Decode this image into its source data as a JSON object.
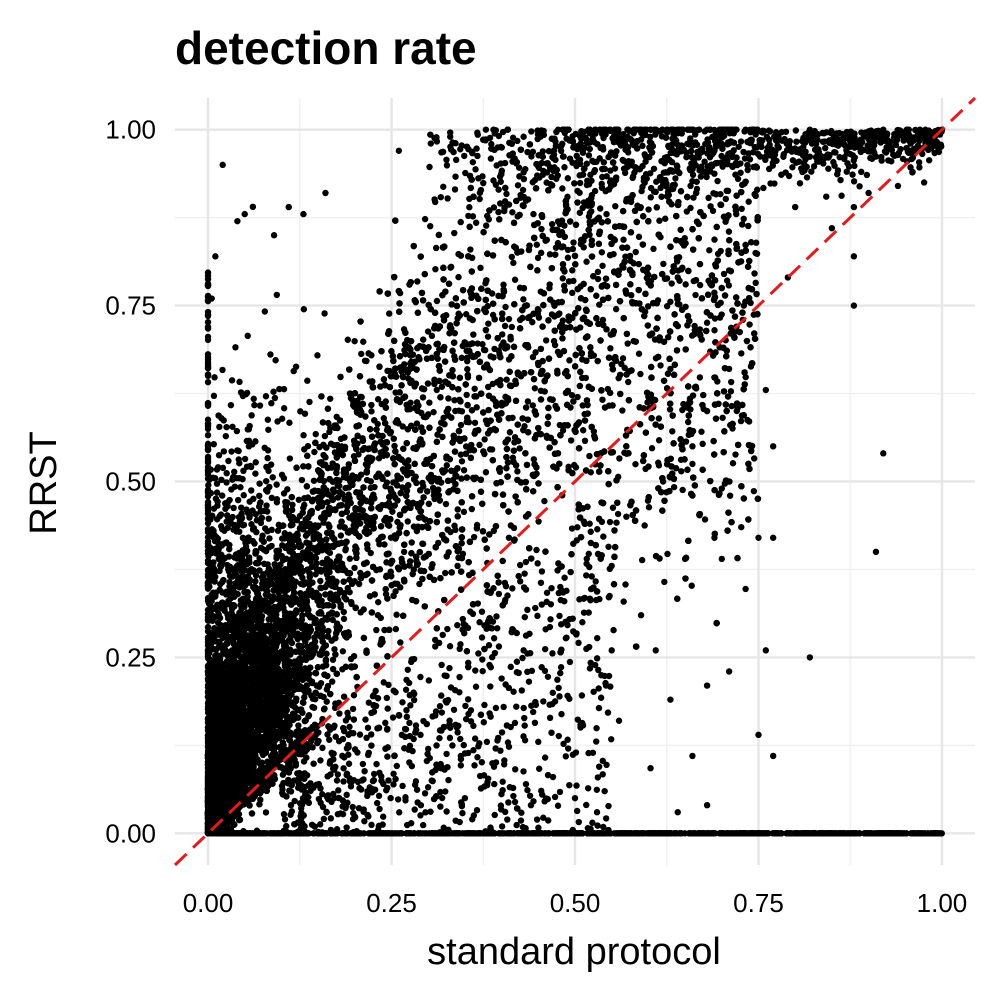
{
  "chart_data": {
    "type": "scatter",
    "title": "detection rate",
    "xlabel": "standard protocol",
    "ylabel": "RRST",
    "xlim": [
      -0.045,
      1.045
    ],
    "ylim": [
      -0.045,
      1.045
    ],
    "x_ticks": [
      0,
      0.25,
      0.5,
      0.75,
      1
    ],
    "x_tick_labels": [
      "0.00",
      "0.25",
      "0.50",
      "0.75",
      "1.00"
    ],
    "y_ticks": [
      0,
      0.25,
      0.5,
      0.75,
      1
    ],
    "y_tick_labels": [
      "0.00",
      "0.25",
      "0.50",
      "0.75",
      "1.00"
    ],
    "grid": true,
    "reference_line": {
      "style": "dashed",
      "color": "#e41a1c",
      "slope": 1,
      "intercept": 0
    },
    "point_color": "#000000",
    "series": [
      {
        "points": [
          [
            0.02,
            0.95
          ],
          [
            0.01,
            0.82
          ],
          [
            0.0,
            0.78
          ],
          [
            0.005,
            0.76
          ],
          [
            0.04,
            0.87
          ],
          [
            0.05,
            0.88
          ],
          [
            0.11,
            0.89
          ],
          [
            0.13,
            0.88
          ],
          [
            0.16,
            0.91
          ],
          [
            0.09,
            0.85
          ],
          [
            0.26,
            0.97
          ],
          [
            0.33,
            0.99
          ],
          [
            0.43,
            0.99
          ],
          [
            0.52,
            0.995
          ],
          [
            0.58,
            0.995
          ],
          [
            0.64,
            0.995
          ],
          [
            0.72,
            1.0
          ],
          [
            0.82,
            1.0
          ],
          [
            0.86,
            0.995
          ],
          [
            0.92,
            1.0
          ],
          [
            0.97,
            1.0
          ],
          [
            1.0,
            1.0
          ],
          [
            0.89,
            0.94
          ],
          [
            0.96,
            0.94
          ],
          [
            0.94,
            0.92
          ],
          [
            0.88,
            0.89
          ],
          [
            0.9,
            0.91
          ],
          [
            0.85,
            0.86
          ],
          [
            0.88,
            0.82
          ],
          [
            0.79,
            0.79
          ],
          [
            0.88,
            0.75
          ],
          [
            0.73,
            0.75
          ],
          [
            0.76,
            0.63
          ],
          [
            0.92,
            0.54
          ],
          [
            0.91,
            0.4
          ],
          [
            0.77,
            0.55
          ],
          [
            0.69,
            0.42
          ],
          [
            0.7,
            0.39
          ],
          [
            0.65,
            0.39
          ],
          [
            0.75,
            0.42
          ],
          [
            0.77,
            0.42
          ],
          [
            0.76,
            0.26
          ],
          [
            0.82,
            0.25
          ],
          [
            0.71,
            0.23
          ],
          [
            0.68,
            0.21
          ],
          [
            0.75,
            0.14
          ],
          [
            0.77,
            0.11
          ],
          [
            0.66,
            0.11
          ],
          [
            0.64,
            0.03
          ],
          [
            0.68,
            0.04
          ],
          [
            0.56,
            0.16
          ],
          [
            0.55,
            0.26
          ],
          [
            0.61,
            0.26
          ],
          [
            0.63,
            0.19
          ],
          [
            0.59,
            0.31
          ],
          [
            0.52,
            0.44
          ],
          [
            0.57,
            0.45
          ],
          [
            0.62,
            0.5
          ],
          [
            0.66,
            0.48
          ],
          [
            0.7,
            0.49
          ],
          [
            0.68,
            0.6
          ],
          [
            0.71,
            0.66
          ],
          [
            0.66,
            0.55
          ],
          [
            0.6,
            0.62
          ],
          [
            0.63,
            0.66
          ],
          [
            0.72,
            0.72
          ],
          [
            0.69,
            0.76
          ],
          [
            0.64,
            0.79
          ],
          [
            0.58,
            0.81
          ],
          [
            0.8,
            0.89
          ],
          [
            0.74,
            0.84
          ],
          [
            0.71,
            0.8
          ],
          [
            0.5,
            0.05
          ],
          [
            0.53,
            0.03
          ],
          [
            0.47,
            0.08
          ],
          [
            0.45,
            0.13
          ],
          [
            0.42,
            0.18
          ],
          [
            0.44,
            0.04
          ],
          [
            0.39,
            0.07
          ],
          [
            0.36,
            0.02
          ],
          [
            0.48,
            0.35
          ],
          [
            0.51,
            0.3
          ],
          [
            0.46,
            0.29
          ],
          [
            0.55,
            0.38
          ],
          [
            0.4,
            0.22
          ],
          [
            0.43,
            0.26
          ],
          [
            0.33,
            0.15
          ],
          [
            0.31,
            0.09
          ],
          [
            0.29,
            0.04
          ],
          [
            0.35,
            0.05
          ],
          [
            0.3,
            0.12
          ],
          [
            0.38,
            0.13
          ],
          [
            0.37,
            0.3
          ],
          [
            0.41,
            0.42
          ],
          [
            0.34,
            0.38
          ],
          [
            0.28,
            0.2
          ]
        ]
      },
      {
        "name_hidden": "",
        "dense_cloud_note": ""
      }
    ],
    "zero_line_points_x_range": [
      0.0,
      1.0
    ]
  }
}
